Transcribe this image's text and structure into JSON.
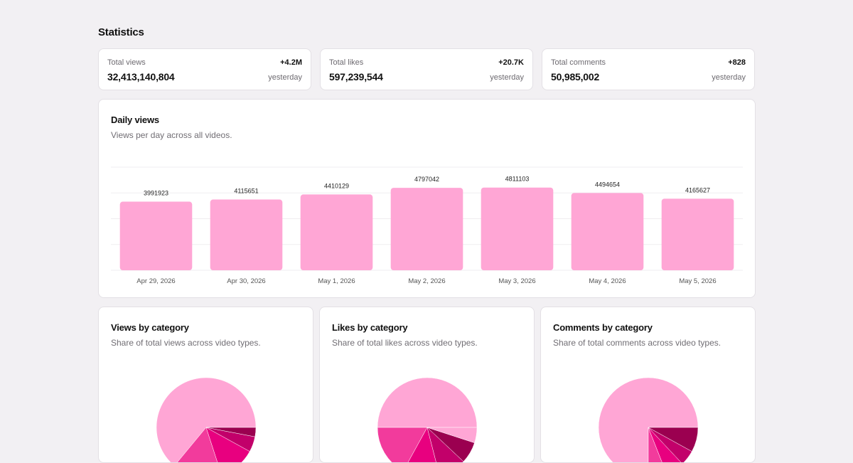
{
  "page": {
    "title": "Statistics"
  },
  "stats": [
    {
      "label": "Total views",
      "value": "32,413,140,804",
      "delta": "+4.2M",
      "period": "yesterday"
    },
    {
      "label": "Total likes",
      "value": "597,239,544",
      "delta": "+20.7K",
      "period": "yesterday"
    },
    {
      "label": "Total comments",
      "value": "50,985,002",
      "delta": "+828",
      "period": "yesterday"
    }
  ],
  "daily": {
    "title": "Daily views",
    "subtitle": "Views per day across all videos."
  },
  "pies": [
    {
      "title": "Views by category",
      "subtitle": "Share of total views across video types."
    },
    {
      "title": "Likes by category",
      "subtitle": "Share of total likes across video types."
    },
    {
      "title": "Comments by category",
      "subtitle": "Share of total comments across video types."
    }
  ],
  "colors": {
    "bar": "#ffa6d5",
    "pie_palette": [
      "#ffa6d5",
      "#f23b9c",
      "#e8007f",
      "#c2006a",
      "#9b0050"
    ]
  },
  "chart_data": [
    {
      "type": "bar",
      "categories": [
        "Apr 29, 2026",
        "Apr 30, 2026",
        "May 1, 2026",
        "May 2, 2026",
        "May 3, 2026",
        "May 4, 2026",
        "May 5, 2026"
      ],
      "values": [
        3991923,
        4115651,
        4410129,
        4797042,
        4811103,
        4494654,
        4165627
      ],
      "data_labels": [
        "3991923",
        "4115651",
        "4410129",
        "4797042",
        "4811103",
        "4494654",
        "4165627"
      ],
      "ylim": [
        0,
        6000000
      ],
      "grid": true
    },
    {
      "type": "pie",
      "values": [
        0.64,
        0.16,
        0.12,
        0.05,
        0.03
      ]
    },
    {
      "type": "pie",
      "values": [
        0.5,
        0.17,
        0.12,
        0.09,
        0.07,
        0.05
      ]
    },
    {
      "type": "pie",
      "values": [
        0.75,
        0.06,
        0.06,
        0.05,
        0.08
      ]
    }
  ]
}
